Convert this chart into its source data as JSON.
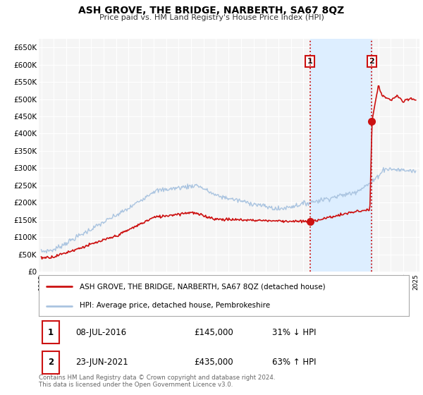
{
  "title": "ASH GROVE, THE BRIDGE, NARBERTH, SA67 8QZ",
  "subtitle": "Price paid vs. HM Land Registry's House Price Index (HPI)",
  "ylim": [
    0,
    675000
  ],
  "yticks": [
    0,
    50000,
    100000,
    150000,
    200000,
    250000,
    300000,
    350000,
    400000,
    450000,
    500000,
    550000,
    600000,
    650000
  ],
  "xlim_start": 1994.8,
  "xlim_end": 2025.3,
  "hpi_color": "#aac4e0",
  "price_color": "#cc1111",
  "vline_color": "#cc1111",
  "shade_color": "#ddeeff",
  "transaction1_x": 2016.52,
  "transaction1_y": 145000,
  "transaction2_x": 2021.47,
  "transaction2_y": 435000,
  "legend_label1": "ASH GROVE, THE BRIDGE, NARBERTH, SA67 8QZ (detached house)",
  "legend_label2": "HPI: Average price, detached house, Pembrokeshire",
  "table_row1": [
    "1",
    "08-JUL-2016",
    "£145,000",
    "31% ↓ HPI"
  ],
  "table_row2": [
    "2",
    "23-JUN-2021",
    "£435,000",
    "63% ↑ HPI"
  ],
  "footer": "Contains HM Land Registry data © Crown copyright and database right 2024.\nThis data is licensed under the Open Government Licence v3.0.",
  "background_color": "#ffffff",
  "plot_bg_color": "#f5f5f5"
}
